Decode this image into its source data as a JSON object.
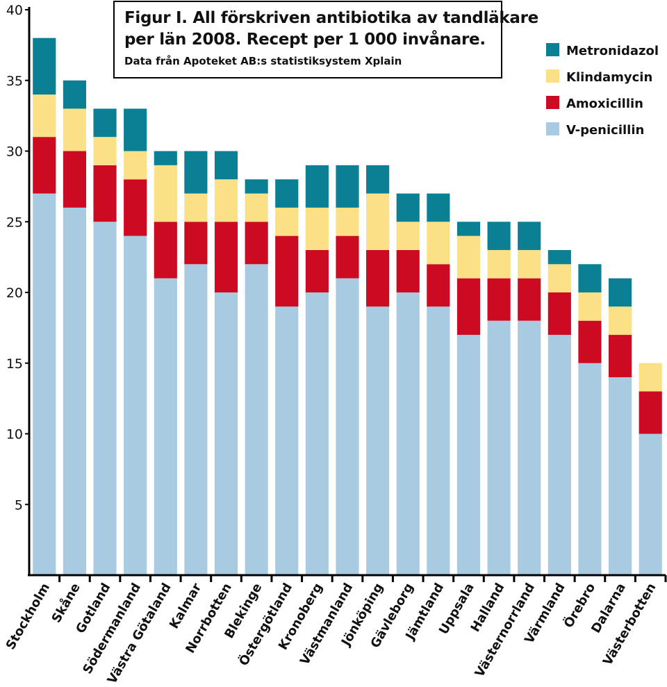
{
  "chart_data": {
    "type": "bar",
    "stacked": true,
    "title_lines": [
      "Figur I. All förskriven antibiotika av tandläkare",
      "per län 2008. Recept per 1 000 invånare."
    ],
    "subtitle": "Data från Apoteket AB:s statistiksystem Xplain",
    "xlabel": "",
    "ylabel": "",
    "ylim": [
      0,
      40
    ],
    "yticks": [
      5,
      10,
      15,
      20,
      25,
      30,
      35,
      40
    ],
    "grid": false,
    "legend_position": "top-right",
    "categories": [
      "Stockholm",
      "Skåne",
      "Gotland",
      "Södermanland",
      "Västra Götaland",
      "Kalmar",
      "Norrbotten",
      "Blekinge",
      "Östergötland",
      "Kronoberg",
      "Västmanland",
      "Jönköping",
      "Gävleborg",
      "Jämtland",
      "Uppsala",
      "Halland",
      "Västernorrland",
      "Värmland",
      "Örebro",
      "Dalarna",
      "Västerbotten"
    ],
    "series": [
      {
        "name": "V-penicillin",
        "color": "#a8cbe1",
        "values": [
          27,
          26,
          25,
          24,
          21,
          22,
          20,
          22,
          19,
          20,
          21,
          19,
          20,
          19,
          17,
          18,
          18,
          17,
          15,
          14,
          10
        ]
      },
      {
        "name": "Amoxicillin",
        "color": "#cc0a22",
        "values": [
          4,
          4,
          4,
          4,
          4,
          3,
          5,
          3,
          5,
          3,
          3,
          4,
          3,
          3,
          4,
          3,
          3,
          3,
          3,
          3,
          3
        ]
      },
      {
        "name": "Klindamycin",
        "color": "#fbe085",
        "values": [
          3,
          3,
          2,
          2,
          4,
          2,
          3,
          2,
          2,
          3,
          2,
          4,
          2,
          3,
          3,
          2,
          2,
          2,
          2,
          2,
          2
        ]
      },
      {
        "name": "Metronidazol",
        "color": "#0b8094",
        "values": [
          4,
          2,
          2,
          3,
          1,
          3,
          2,
          1,
          2,
          3,
          3,
          2,
          2,
          2,
          1,
          2,
          2,
          1,
          2,
          2,
          0
        ]
      }
    ]
  }
}
